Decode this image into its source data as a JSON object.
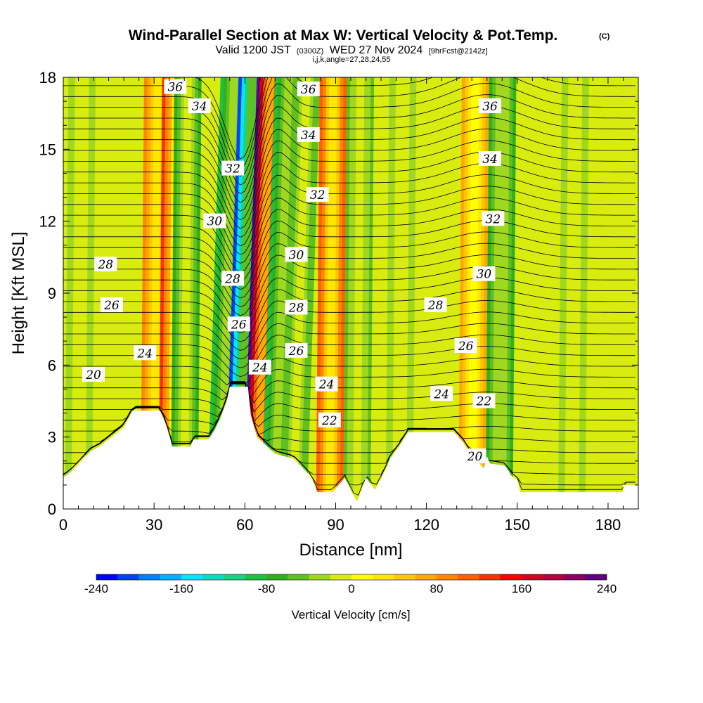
{
  "chart_data": {
    "type": "heatmap",
    "title": "Wind-Parallel Section at Max W: Vertical Velocity & Pot.Temp.",
    "title_mark": "(C)",
    "subtitle_prefix": "Valid 1200 JST",
    "subtitle_small_1": "(0300Z)",
    "subtitle_main": "WED 27 Nov 2024",
    "subtitle_small_2": "[9hrFcst@2142z]",
    "subtitle_line3": "i,j,k,angle=27,28,24,55",
    "xlabel": "Distance [nm]",
    "ylabel": "Height [Kft MSL]",
    "xlim": [
      0,
      190
    ],
    "ylim": [
      0,
      18
    ],
    "xticks": [
      0,
      30,
      60,
      90,
      120,
      150,
      180
    ],
    "yticks": [
      0,
      3,
      6,
      9,
      12,
      15,
      18
    ],
    "colorbar": {
      "label": "Vertical Velocity [cm/s]",
      "range": [
        -240,
        240
      ],
      "ticks": [
        -240,
        -160,
        -80,
        0,
        80,
        160,
        240
      ],
      "colors": [
        "#0000ff",
        "#0040ff",
        "#0080ff",
        "#00b0ff",
        "#00e8ff",
        "#00e0c0",
        "#20d080",
        "#20c040",
        "#30b020",
        "#60c020",
        "#a0d820",
        "#d8ec10",
        "#ffff00",
        "#ffe800",
        "#ffc800",
        "#ffa800",
        "#ff8800",
        "#ff6000",
        "#ff3000",
        "#ff0000",
        "#d80020",
        "#b00040",
        "#880060",
        "#600080"
      ]
    },
    "vertical_velocity_bands": [
      {
        "x": 5,
        "w_cms": -30
      },
      {
        "x": 30,
        "w_cms": 90
      },
      {
        "x": 36,
        "w_cms": 130
      },
      {
        "x": 40,
        "w_cms": -70
      },
      {
        "x": 52,
        "w_cms": -90
      },
      {
        "x": 58,
        "w_cms": -210
      },
      {
        "x": 64,
        "w_cms": 220
      },
      {
        "x": 70,
        "w_cms": -100
      },
      {
        "x": 76,
        "w_cms": -60
      },
      {
        "x": 88,
        "w_cms": 110
      },
      {
        "x": 97,
        "w_cms": -50
      },
      {
        "x": 111,
        "w_cms": -40
      },
      {
        "x": 135,
        "w_cms": 70
      },
      {
        "x": 144,
        "w_cms": -80
      },
      {
        "x": 168,
        "w_cms": -30
      }
    ],
    "theta_contour_labels": [
      {
        "label": "36",
        "x": 37,
        "y": 17.6
      },
      {
        "label": "34",
        "x": 45,
        "y": 16.8
      },
      {
        "label": "32",
        "x": 56,
        "y": 14.2
      },
      {
        "label": "30",
        "x": 50,
        "y": 12.0
      },
      {
        "label": "28",
        "x": 14,
        "y": 10.2
      },
      {
        "label": "28",
        "x": 56,
        "y": 9.6
      },
      {
        "label": "26",
        "x": 16,
        "y": 8.5
      },
      {
        "label": "26",
        "x": 58,
        "y": 7.7
      },
      {
        "label": "24",
        "x": 27,
        "y": 6.5
      },
      {
        "label": "24",
        "x": 65,
        "y": 5.9
      },
      {
        "label": "20",
        "x": 10,
        "y": 5.6
      },
      {
        "label": "36",
        "x": 81,
        "y": 17.5
      },
      {
        "label": "34",
        "x": 81,
        "y": 15.6
      },
      {
        "label": "32",
        "x": 84,
        "y": 13.1
      },
      {
        "label": "30",
        "x": 77,
        "y": 10.6
      },
      {
        "label": "28",
        "x": 77,
        "y": 8.4
      },
      {
        "label": "26",
        "x": 77,
        "y": 6.6
      },
      {
        "label": "24",
        "x": 87,
        "y": 5.2
      },
      {
        "label": "22",
        "x": 88,
        "y": 3.7
      },
      {
        "label": "36",
        "x": 141,
        "y": 16.8
      },
      {
        "label": "34",
        "x": 141,
        "y": 14.6
      },
      {
        "label": "32",
        "x": 142,
        "y": 12.1
      },
      {
        "label": "30",
        "x": 139,
        "y": 9.8
      },
      {
        "label": "28",
        "x": 123,
        "y": 8.5
      },
      {
        "label": "26",
        "x": 133,
        "y": 6.8
      },
      {
        "label": "24",
        "x": 125,
        "y": 4.8
      },
      {
        "label": "22",
        "x": 139,
        "y": 4.5
      },
      {
        "label": "20",
        "x": 136,
        "y": 2.2
      }
    ],
    "terrain": [
      [
        0,
        1.3
      ],
      [
        3,
        1.6
      ],
      [
        6,
        2.0
      ],
      [
        9,
        2.4
      ],
      [
        12,
        2.6
      ],
      [
        16,
        3.0
      ],
      [
        20,
        3.4
      ],
      [
        23,
        4.1
      ],
      [
        32,
        4.1
      ],
      [
        34,
        3.5
      ],
      [
        36,
        2.6
      ],
      [
        42,
        2.6
      ],
      [
        43,
        2.9
      ],
      [
        48,
        2.9
      ],
      [
        50,
        3.3
      ],
      [
        52,
        3.8
      ],
      [
        54,
        4.5
      ],
      [
        55,
        5.1
      ],
      [
        61,
        5.1
      ],
      [
        62,
        3.9
      ],
      [
        64,
        3.0
      ],
      [
        70,
        2.3
      ],
      [
        76,
        2.1
      ],
      [
        80,
        1.6
      ],
      [
        82,
        1.3
      ],
      [
        84,
        0.7
      ],
      [
        89,
        0.7
      ],
      [
        93,
        1.3
      ],
      [
        97,
        0.3
      ],
      [
        100,
        1.3
      ],
      [
        103,
        0.8
      ],
      [
        106,
        1.5
      ],
      [
        108,
        2.1
      ],
      [
        111,
        2.6
      ],
      [
        114,
        3.2
      ],
      [
        129,
        3.2
      ],
      [
        132,
        2.8
      ],
      [
        135,
        2.2
      ],
      [
        139,
        1.7
      ],
      [
        140,
        2.2
      ],
      [
        141,
        1.9
      ],
      [
        146,
        1.8
      ],
      [
        148,
        1.4
      ],
      [
        150,
        1.2
      ],
      [
        151,
        0.7
      ],
      [
        168,
        0.7
      ],
      [
        185,
        0.7
      ],
      [
        185,
        1.0
      ],
      [
        190,
        1.0
      ]
    ]
  }
}
